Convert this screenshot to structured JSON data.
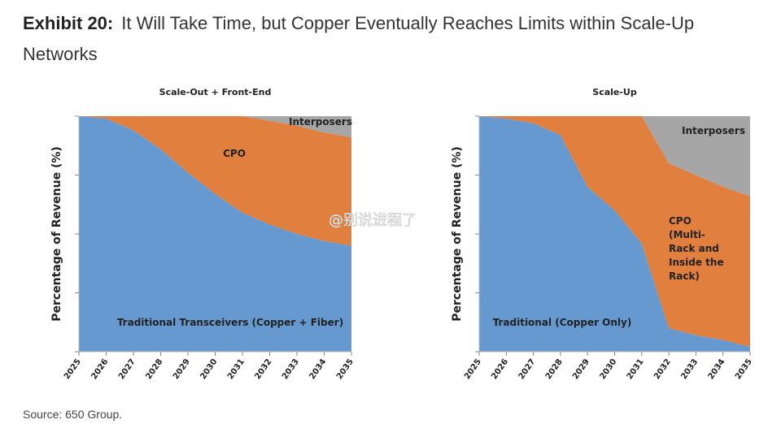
{
  "header": {
    "exhibit": "Exhibit 20:",
    "title": "It Will Take Time, but Copper Eventually Reaches Limits within Scale-Up Networks"
  },
  "watermark": "@别说进程了",
  "source": "Source: 650 Group.",
  "chart_data": [
    {
      "type": "stacked-area",
      "title": "Scale-Out + Front-End",
      "y_label": "Percentage of Revenue (%)",
      "categories": [
        "2025",
        "2026",
        "2027",
        "2028",
        "2029",
        "2030",
        "2031",
        "2032",
        "2033",
        "2034",
        "2035"
      ],
      "ylim": [
        0,
        100
      ],
      "series": [
        {
          "name": "Traditional Transceivers (Copper + Fiber)",
          "color": "#6699cf",
          "values": [
            100,
            99,
            94,
            86,
            76,
            67,
            59,
            54,
            50,
            47,
            45
          ]
        },
        {
          "name": "CPO",
          "color": "#e07f3e",
          "values": [
            0,
            1,
            6,
            14,
            24,
            33,
            41,
            44,
            46,
            46,
            46
          ]
        },
        {
          "name": "Interposers",
          "color": "#a6a6a6",
          "values": [
            0,
            0,
            0,
            0,
            0,
            0,
            0,
            2,
            4,
            7,
            9
          ]
        }
      ]
    },
    {
      "type": "stacked-area",
      "title": "Scale-Up",
      "y_label": "Percentage of Revenue (%)",
      "categories": [
        "2025",
        "2026",
        "2027",
        "2028",
        "2029",
        "2030",
        "2031",
        "2032",
        "2033",
        "2034",
        "2035"
      ],
      "ylim": [
        0,
        100
      ],
      "series": [
        {
          "name": "Traditional (Copper Only)",
          "color": "#6699cf",
          "values": [
            100,
            99,
            97,
            92,
            70,
            60,
            46,
            10,
            7,
            5,
            2
          ]
        },
        {
          "name": "CPO (Multi-Rack and Inside the Rack)",
          "color": "#e07f3e",
          "values": [
            0,
            1,
            3,
            8,
            30,
            40,
            54,
            70,
            68,
            65,
            64
          ]
        },
        {
          "name": "Interposers",
          "color": "#a6a6a6",
          "values": [
            0,
            0,
            0,
            0,
            0,
            0,
            0,
            20,
            25,
            30,
            34
          ]
        }
      ]
    }
  ]
}
